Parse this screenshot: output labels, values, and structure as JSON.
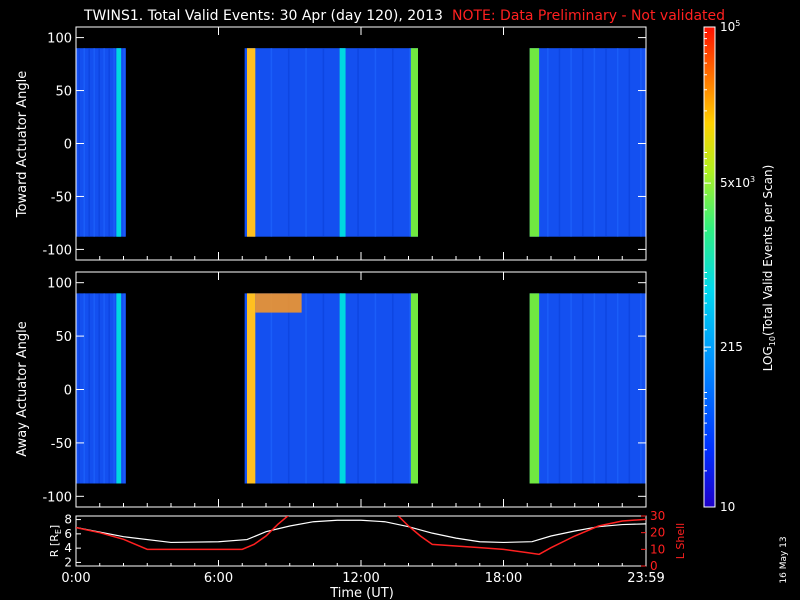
{
  "header": {
    "title": "TWINS1. Total Valid Events: 30 Apr (day 120), 2013",
    "note": "NOTE: Data Preliminary - Not validated"
  },
  "footer": {
    "date_stamp": "16 May 13"
  },
  "colors": {
    "note": "#ff2020",
    "orbit_r": "#ffffff",
    "orbit_l": "#ff2020"
  },
  "chart_data": [
    {
      "type": "heatmap",
      "ylabel": "Toward Actuator Angle",
      "ylim": [
        -110,
        110
      ],
      "yticks": [
        "100",
        "50",
        "0",
        "-50",
        "-100"
      ],
      "data_y_range": [
        -88,
        90
      ],
      "x_unit": "hours UT",
      "data_segments": [
        [
          0,
          2.1
        ],
        [
          7.1,
          14.4
        ],
        [
          19.1,
          24
        ]
      ],
      "bright_bands": [
        {
          "x": [
            7.2,
            7.55
          ],
          "level": "high"
        },
        {
          "x": [
            1.7,
            1.9
          ],
          "level": "medium"
        },
        {
          "x": [
            11.1,
            11.35
          ],
          "level": "medium"
        },
        {
          "x": [
            14.1,
            14.4
          ],
          "level": "medium-high"
        },
        {
          "x": [
            19.1,
            19.5
          ],
          "level": "medium-high"
        }
      ]
    },
    {
      "type": "heatmap",
      "ylabel": "Away Actuator Angle",
      "xlabel": "Time (UT)",
      "xticks": [
        "0:00",
        "6:00",
        "12:00",
        "18:00",
        "23:59"
      ],
      "ylim": [
        -110,
        110
      ],
      "yticks": [
        "100",
        "50",
        "0",
        "-50",
        "-100"
      ],
      "data_y_range": [
        -88,
        90
      ],
      "x_unit": "hours UT",
      "data_segments": [
        [
          0,
          2.1
        ],
        [
          7.1,
          14.4
        ],
        [
          19.1,
          24
        ]
      ],
      "bright_bands": [
        {
          "x": [
            7.2,
            7.55
          ],
          "level": "high"
        },
        {
          "x": [
            7.55,
            9.5
          ],
          "level": "high-top"
        },
        {
          "x": [
            1.7,
            1.9
          ],
          "level": "medium"
        },
        {
          "x": [
            11.1,
            11.35
          ],
          "level": "medium"
        },
        {
          "x": [
            14.1,
            14.4
          ],
          "level": "medium-high"
        },
        {
          "x": [
            19.1,
            19.5
          ],
          "level": "medium-high"
        }
      ]
    },
    {
      "type": "line",
      "ylabel": "R [R",
      "ylabel_sub": "E",
      "y2label": "L Shell",
      "yticks": [
        "8",
        "6",
        "4",
        "2"
      ],
      "y2ticks": [
        "30",
        "20",
        "10",
        "0"
      ],
      "series": [
        {
          "x": [
            0,
            2,
            4,
            6,
            7.2,
            8,
            9,
            10,
            11,
            12,
            13,
            14,
            15,
            16,
            17,
            18,
            19.2,
            20,
            21,
            22,
            23,
            24
          ],
          "values": [
            6.9,
            5.6,
            4.8,
            4.9,
            5.2,
            6.3,
            7.1,
            7.7,
            7.9,
            7.9,
            7.7,
            7.0,
            6.1,
            5.4,
            4.9,
            4.8,
            4.9,
            5.7,
            6.4,
            7.0,
            7.3,
            7.4
          ]
        },
        {
          "x": [
            0,
            1,
            2,
            3,
            4,
            5,
            6,
            7,
            7.5,
            8,
            8.5,
            9,
            13.5,
            14,
            14.5,
            15,
            16,
            17,
            18,
            19,
            19.5,
            20,
            21,
            22,
            23,
            24
          ],
          "values": [
            23,
            20,
            16,
            10,
            10,
            10,
            10,
            10,
            13,
            18,
            25,
            31,
            31,
            24,
            18,
            13,
            12,
            11,
            10,
            8,
            7,
            11,
            18,
            24,
            27,
            28
          ]
        }
      ],
      "ylim": [
        1.5,
        8.5
      ],
      "y2lim": [
        0,
        30
      ]
    }
  ],
  "colorbar": {
    "label_pre": "LOG",
    "label_sub": "10",
    "label_post": "(Total Valid Events per Scan)",
    "scale": "log",
    "range": [
      10,
      100000
    ],
    "ticks": [
      {
        "value": 100000,
        "base": "10",
        "exp": "5",
        "mant": ""
      },
      {
        "value": 5000,
        "base": "10",
        "exp": "3",
        "mant": "5x"
      },
      {
        "value": 215,
        "text": "215"
      },
      {
        "value": 10,
        "text": "10"
      }
    ]
  }
}
